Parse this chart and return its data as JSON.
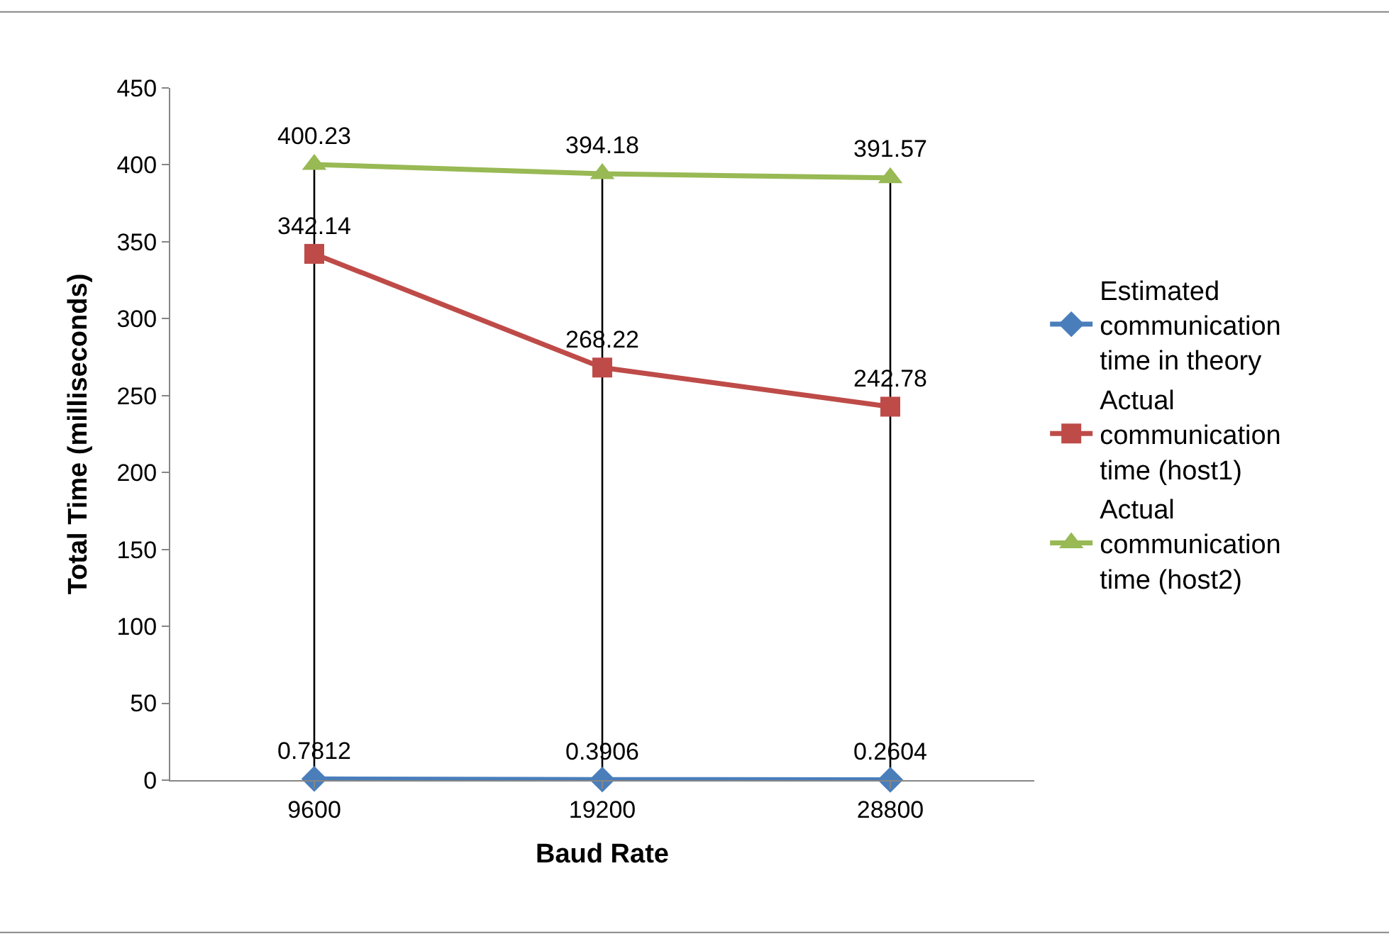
{
  "chart_data": {
    "type": "line",
    "xlabel": "Baud Rate",
    "ylabel": "Total Time (milliseconds)",
    "categories": [
      "9600",
      "19200",
      "28800"
    ],
    "ylim": [
      0,
      450
    ],
    "yticks": [
      0,
      50,
      100,
      150,
      200,
      250,
      300,
      350,
      400,
      450
    ],
    "grid": false,
    "legend": "right",
    "data_labels": true,
    "series": [
      {
        "name": "Estimated communication time in theory",
        "color": "#4a7ebb",
        "marker": "diamond",
        "values": [
          0.7812,
          0.3906,
          0.2604
        ]
      },
      {
        "name": "Actual communication time (host1)",
        "color": "#be4b48",
        "marker": "square",
        "values": [
          342.14,
          268.22,
          242.78
        ]
      },
      {
        "name": "Actual communication time (host2)",
        "color": "#98b954",
        "marker": "triangle",
        "values": [
          400.23,
          394.18,
          391.57
        ]
      }
    ],
    "ref_lines": [
      {
        "axis": "x",
        "value": "9600",
        "color": "#000000"
      },
      {
        "axis": "x",
        "value": "19200",
        "color": "#000000"
      },
      {
        "axis": "x",
        "value": "28800",
        "color": "#000000"
      }
    ]
  }
}
